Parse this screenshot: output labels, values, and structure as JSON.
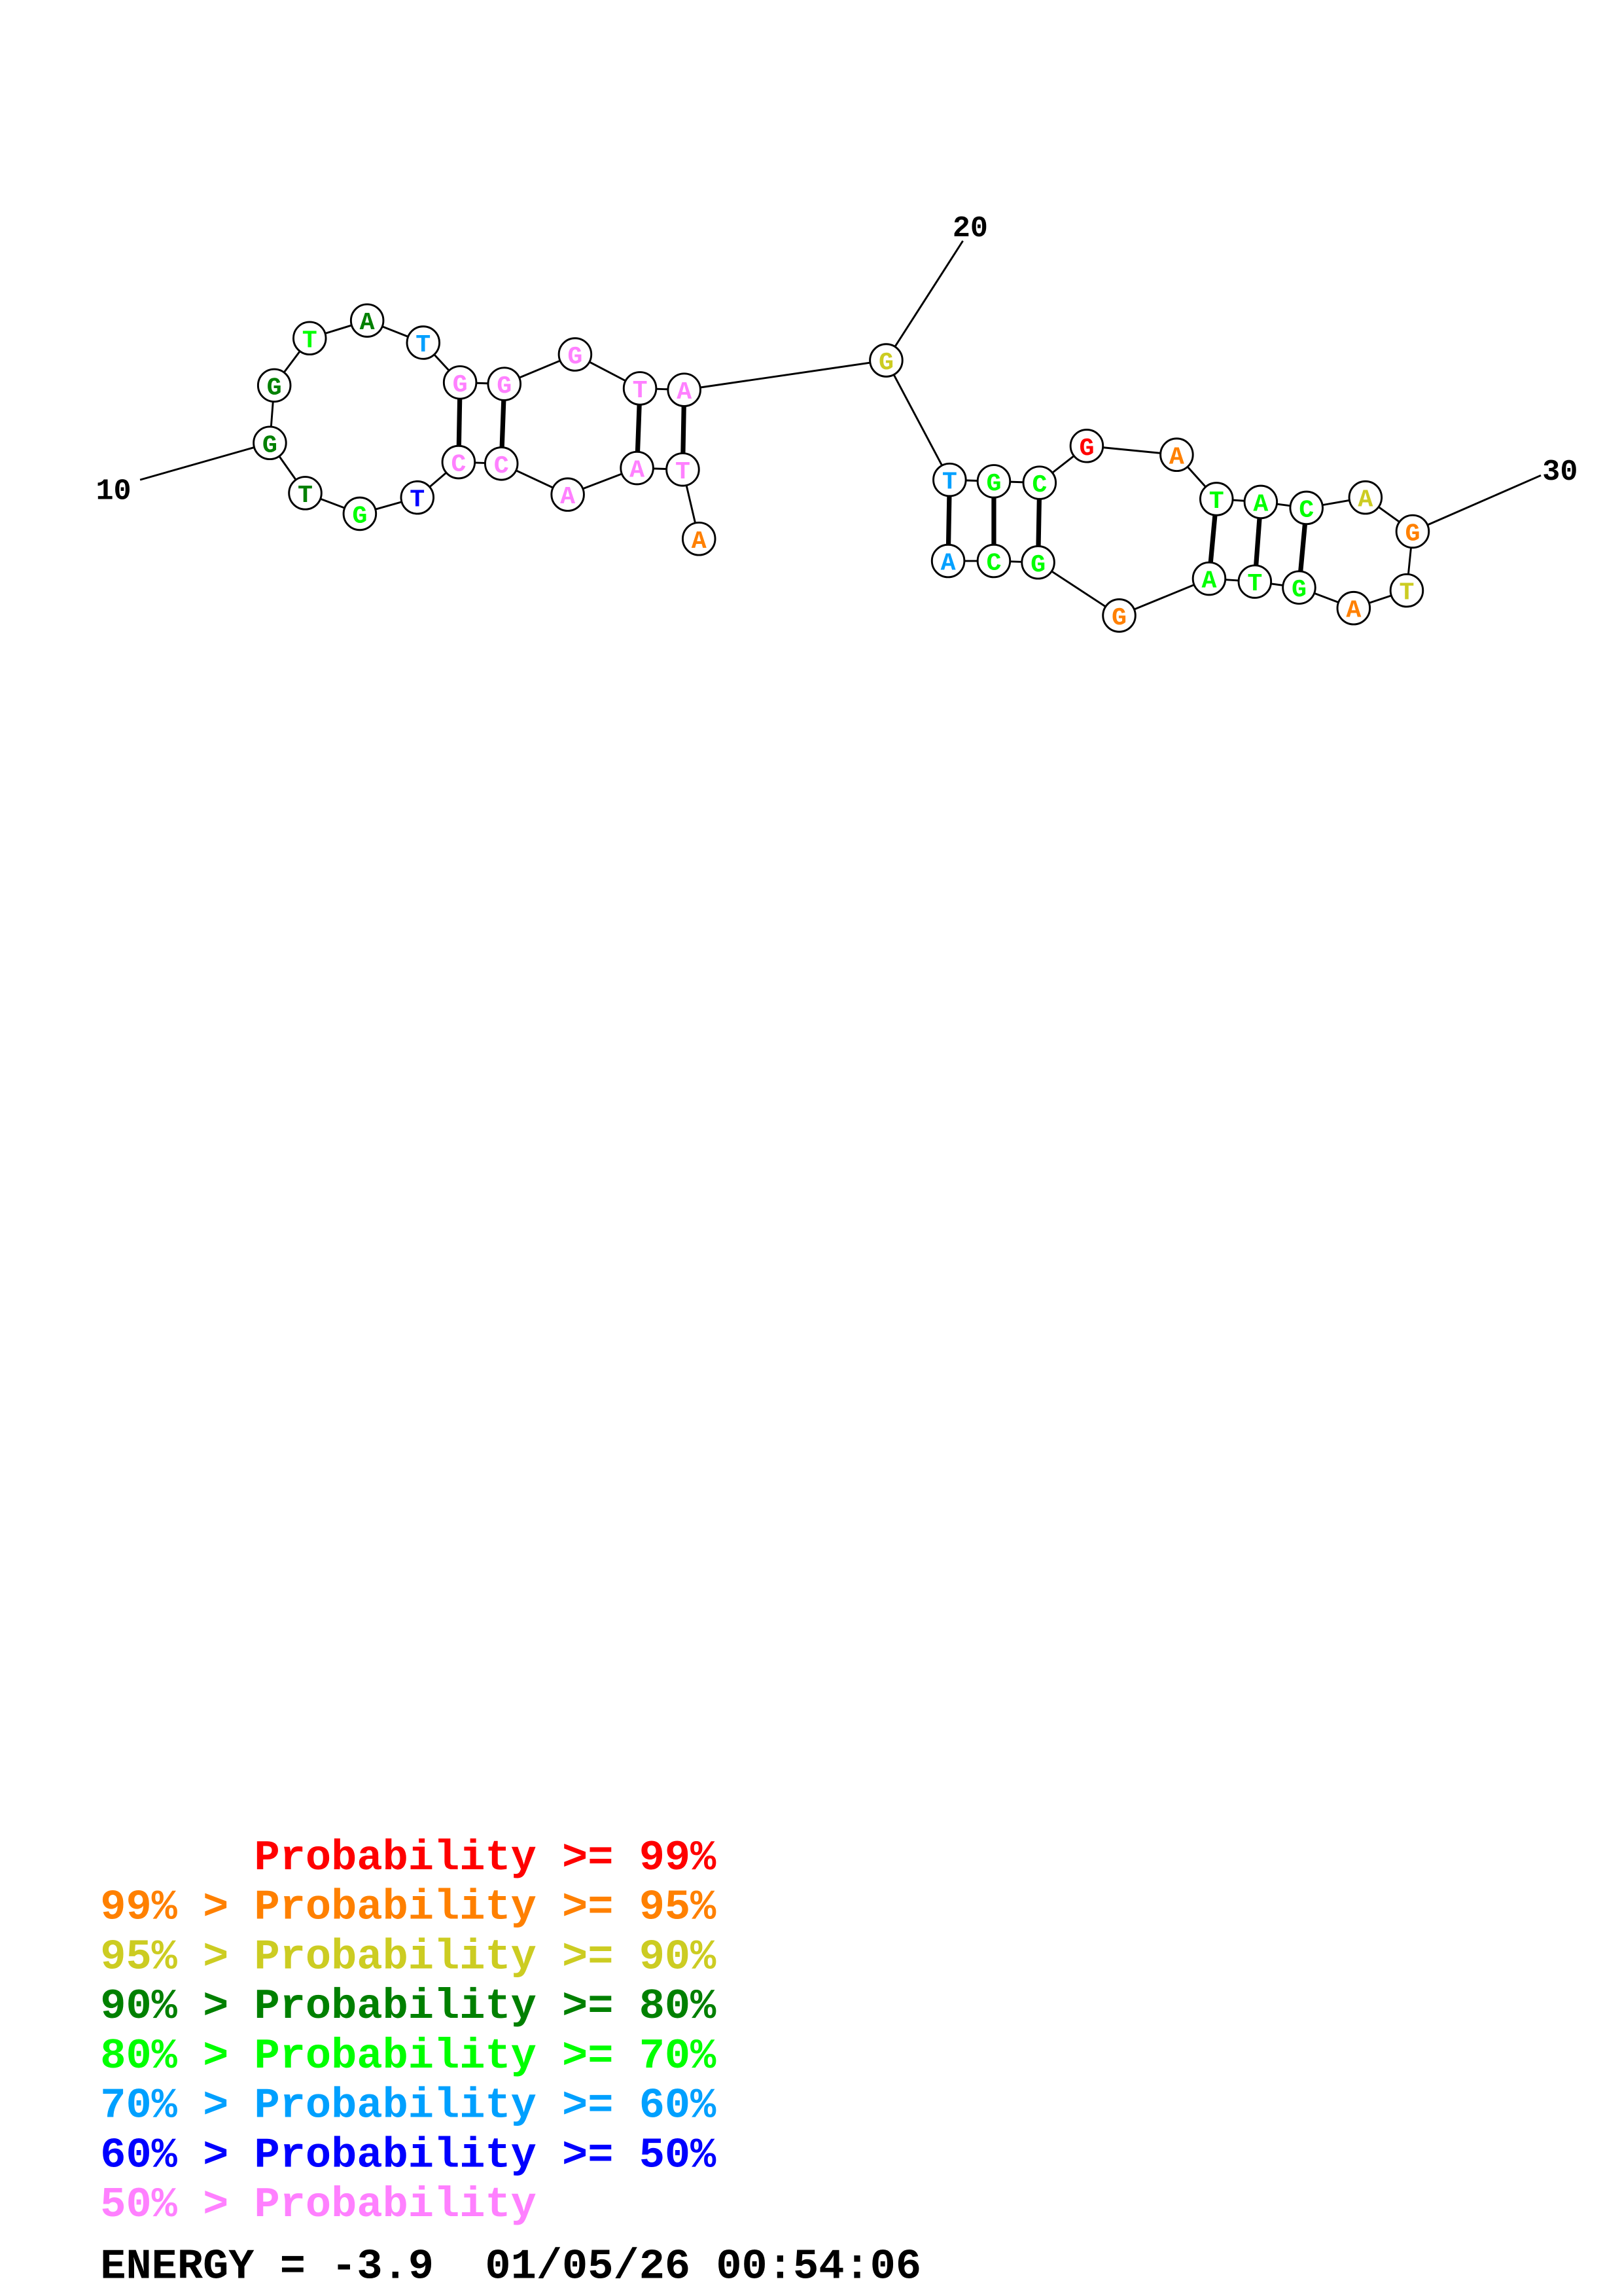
{
  "colors": {
    "red": "#FF0000",
    "orange": "#FF8000",
    "yellow": "#CCCC22",
    "darkgreen": "#008000",
    "green": "#00FF00",
    "cyan": "#00A0FF",
    "blue": "#0000FF",
    "pink": "#FF80FF"
  },
  "sequence": [
    {
      "n": "A",
      "c": "orange"
    },
    {
      "n": "T",
      "c": "pink"
    },
    {
      "n": "A",
      "c": "pink"
    },
    {
      "n": "A",
      "c": "pink"
    },
    {
      "n": "C",
      "c": "pink"
    },
    {
      "n": "C",
      "c": "pink"
    },
    {
      "n": "T",
      "c": "blue"
    },
    {
      "n": "G",
      "c": "green"
    },
    {
      "n": "T",
      "c": "darkgreen"
    },
    {
      "n": "G",
      "c": "darkgreen"
    },
    {
      "n": "G",
      "c": "darkgreen"
    },
    {
      "n": "T",
      "c": "green"
    },
    {
      "n": "A",
      "c": "darkgreen"
    },
    {
      "n": "T",
      "c": "cyan"
    },
    {
      "n": "G",
      "c": "pink"
    },
    {
      "n": "G",
      "c": "pink"
    },
    {
      "n": "G",
      "c": "pink"
    },
    {
      "n": "T",
      "c": "pink"
    },
    {
      "n": "A",
      "c": "pink"
    },
    {
      "n": "G",
      "c": "yellow"
    },
    {
      "n": "T",
      "c": "cyan"
    },
    {
      "n": "G",
      "c": "green"
    },
    {
      "n": "C",
      "c": "green"
    },
    {
      "n": "G",
      "c": "red"
    },
    {
      "n": "A",
      "c": "orange"
    },
    {
      "n": "T",
      "c": "green"
    },
    {
      "n": "A",
      "c": "green"
    },
    {
      "n": "C",
      "c": "green"
    },
    {
      "n": "A",
      "c": "yellow"
    },
    {
      "n": "G",
      "c": "orange"
    },
    {
      "n": "T",
      "c": "yellow"
    },
    {
      "n": "A",
      "c": "orange"
    },
    {
      "n": "G",
      "c": "green"
    },
    {
      "n": "T",
      "c": "green"
    },
    {
      "n": "A",
      "c": "green"
    },
    {
      "n": "G",
      "c": "orange"
    },
    {
      "n": "G",
      "c": "green"
    },
    {
      "n": "C",
      "c": "green"
    },
    {
      "n": "A",
      "c": "cyan"
    }
  ],
  "pairs": [
    [
      2,
      19
    ],
    [
      3,
      18
    ],
    [
      5,
      16
    ],
    [
      6,
      15
    ],
    [
      21,
      39
    ],
    [
      22,
      38
    ],
    [
      23,
      37
    ],
    [
      26,
      35
    ],
    [
      27,
      34
    ],
    [
      28,
      33
    ]
  ],
  "position_labels": [
    {
      "index": 10,
      "text": "10"
    },
    {
      "index": 20,
      "text": "20"
    },
    {
      "index": 30,
      "text": "30"
    }
  ],
  "legend": [
    {
      "text": "      Probability >= 99%",
      "color": "red"
    },
    {
      "text": "99% > Probability >= 95%",
      "color": "orange"
    },
    {
      "text": "95% > Probability >= 90%",
      "color": "yellow"
    },
    {
      "text": "90% > Probability >= 80%",
      "color": "darkgreen"
    },
    {
      "text": "80% > Probability >= 70%",
      "color": "green"
    },
    {
      "text": "70% > Probability >= 60%",
      "color": "cyan"
    },
    {
      "text": "60% > Probability >= 50%",
      "color": "blue"
    },
    {
      "text": "50% > Probability",
      "color": "pink"
    }
  ],
  "energy_line": "ENERGY = -3.9  01/05/26 00:54:06"
}
